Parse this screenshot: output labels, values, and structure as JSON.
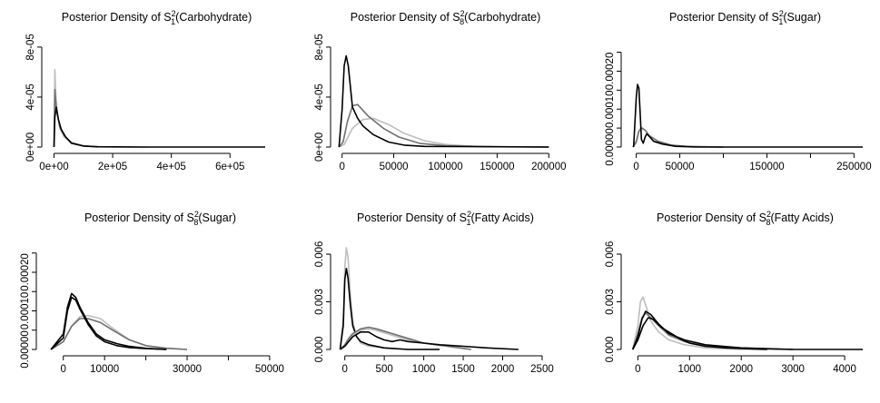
{
  "chart_data": [
    {
      "type": "line",
      "title": {
        "prefix": "Posterior Density of S",
        "sub": "1",
        "sup": "2",
        "suffix": "(Carbohydrate)"
      },
      "xlim": [
        -20000,
        720000
      ],
      "ylim": [
        0,
        8.5e-05
      ],
      "x_ticks": [
        0,
        200000,
        400000,
        600000
      ],
      "x_tick_labels": [
        "0e+00",
        "2e+05",
        "4e+05",
        "6e+05"
      ],
      "y_ticks": [
        0,
        4e-05,
        8e-05
      ],
      "y_tick_labels": [
        "0e+00",
        "4e-05",
        "8e-05"
      ],
      "series": [
        {
          "color": "#bdbdbd",
          "x": [
            0,
            3000,
            6000,
            10000,
            20000,
            35000,
            60000,
            100000,
            150000,
            320000
          ],
          "y": [
            0,
            6.2e-05,
            4.2e-05,
            3e-05,
            1.5e-05,
            8e-06,
            3e-06,
            8e-07,
            2e-07,
            0
          ]
        },
        {
          "color": "#707070",
          "x": [
            0,
            3000,
            6000,
            10000,
            20000,
            35000,
            60000,
            100000,
            150000
          ],
          "y": [
            0,
            4.6e-05,
            3.6e-05,
            2.8e-05,
            1.6e-05,
            9e-06,
            3.5e-06,
            1e-06,
            0
          ]
        },
        {
          "color": "#000000",
          "x": [
            0,
            3000,
            8000,
            15000,
            25000,
            40000,
            60000,
            100000,
            150000,
            300000,
            720000
          ],
          "y": [
            0,
            2.4e-05,
            3.2e-05,
            2.2e-05,
            1.4e-05,
            8e-06,
            3e-06,
            8e-07,
            2e-07,
            0,
            0
          ]
        }
      ]
    },
    {
      "type": "line",
      "title": {
        "prefix": "Posterior Density of S",
        "sub": "8",
        "sup": "2",
        "suffix": "(Carbohydrate)"
      },
      "xlim": [
        -5000,
        205000
      ],
      "ylim": [
        0,
        8.5e-05
      ],
      "x_ticks": [
        0,
        50000,
        100000,
        150000,
        200000
      ],
      "x_tick_labels": [
        "0",
        "50000",
        "100000",
        "150000",
        "200000"
      ],
      "y_ticks": [
        0,
        4e-05,
        8e-05
      ],
      "y_tick_labels": [
        "0e+00",
        "4e-05",
        "8e-05"
      ],
      "series": [
        {
          "color": "#bdbdbd",
          "x": [
            -3000,
            2000,
            10000,
            20000,
            30000,
            45000,
            60000,
            80000,
            100000,
            130000,
            200000
          ],
          "y": [
            0,
            2e-06,
            1.5e-05,
            2.2e-05,
            2.3e-05,
            1.8e-05,
            1.1e-05,
            5e-06,
            2e-06,
            5e-07,
            0
          ]
        },
        {
          "color": "#707070",
          "x": [
            -3000,
            1000,
            5000,
            10000,
            15000,
            25000,
            40000,
            55000,
            75000,
            100000,
            150000,
            200000
          ],
          "y": [
            0,
            4e-06,
            2e-05,
            3.3e-05,
            3.4e-05,
            2.5e-05,
            1.5e-05,
            8e-06,
            3e-06,
            1e-06,
            2e-07,
            0
          ]
        },
        {
          "color": "#000000",
          "x": [
            -3000,
            0,
            2000,
            4000,
            6000,
            10000,
            15000,
            20000,
            30000,
            45000,
            60000,
            80000,
            200000
          ],
          "y": [
            0,
            3e-05,
            6.5e-05,
            7.3e-05,
            6.5e-05,
            3.2e-05,
            2.3e-05,
            1.7e-05,
            1e-05,
            4e-06,
            1.5e-06,
            5e-07,
            0
          ]
        }
      ]
    },
    {
      "type": "line",
      "title": {
        "prefix": "Posterior Density of S",
        "sub": "1",
        "sup": "2",
        "suffix": "(Sugar)"
      },
      "xlim": [
        -10000,
        260000
      ],
      "ylim": [
        0,
        0.00028
      ],
      "x_ticks": [
        0,
        50000,
        100000,
        150000,
        200000,
        250000
      ],
      "x_tick_labels": [
        "0",
        "50000",
        "",
        "150000",
        "",
        "250000"
      ],
      "y_ticks": [
        0,
        5e-05,
        0.0001,
        0.00015,
        0.0002,
        0.00025
      ],
      "y_tick_labels": [
        "0.00000",
        "",
        "0.00010",
        "",
        "0.00020",
        ""
      ],
      "series": [
        {
          "color": "#bdbdbd",
          "x": [
            -4000,
            0,
            3000,
            6000,
            10000,
            15000,
            25000,
            40000,
            60000,
            100000
          ],
          "y": [
            0,
            1e-05,
            4e-05,
            5.2e-05,
            4.5e-05,
            3e-05,
            1.5e-05,
            5e-06,
            1.5e-06,
            0
          ]
        },
        {
          "color": "#707070",
          "x": [
            -4000,
            0,
            3000,
            6000,
            10000,
            15000,
            25000,
            40000,
            60000,
            100000
          ],
          "y": [
            0,
            1.5e-05,
            4.2e-05,
            5e-05,
            4.5e-05,
            3e-05,
            1.5e-05,
            5e-06,
            1.5e-06,
            0
          ]
        },
        {
          "color": "#000000",
          "x": [
            -3000,
            0,
            1500,
            3000,
            4500,
            6000,
            8000,
            10000,
            12000,
            15000,
            20000,
            30000,
            45000,
            70000,
            260000
          ],
          "y": [
            0,
            0.00013,
            0.000165,
            0.000155,
            9e-05,
            2e-05,
            1e-05,
            2.5e-05,
            3.5e-05,
            2.8e-05,
            1.5e-05,
            8e-06,
            2e-06,
            0,
            0
          ]
        }
      ]
    },
    {
      "type": "line",
      "title": {
        "prefix": "Posterior Density of S",
        "sub": "8",
        "sup": "2",
        "suffix": "(Sugar)"
      },
      "xlim": [
        -5000,
        52000
      ],
      "ylim": [
        0,
        0.00028
      ],
      "x_ticks": [
        0,
        10000,
        20000,
        30000,
        40000,
        50000
      ],
      "x_tick_labels": [
        "0",
        "10000",
        "",
        "30000",
        "",
        "50000"
      ],
      "y_ticks": [
        0,
        5e-05,
        0.0001,
        0.00015,
        0.0002,
        0.00025
      ],
      "y_tick_labels": [
        "0.00000",
        "",
        "0.00010",
        "",
        "0.00020",
        ""
      ],
      "series": [
        {
          "color": "#bdbdbd",
          "x": [
            -3000,
            0,
            2000,
            4000,
            6000,
            9000,
            12000,
            16000,
            20000,
            25000,
            30000
          ],
          "y": [
            0,
            2e-05,
            6e-05,
            8.5e-05,
            8.8e-05,
            8e-05,
            5.5e-05,
            2.5e-05,
            1e-05,
            3e-06,
            0
          ]
        },
        {
          "color": "#707070",
          "x": [
            -3000,
            0,
            2000,
            4000,
            6000,
            9000,
            12000,
            16000,
            20000,
            25000,
            30000
          ],
          "y": [
            0,
            2e-05,
            6e-05,
            8e-05,
            8e-05,
            7e-05,
            5e-05,
            2.5e-05,
            1e-05,
            3e-06,
            0
          ]
        },
        {
          "color": "#000000",
          "x": [
            -3000,
            0,
            1000,
            2000,
            3000,
            4000,
            6000,
            8000,
            10000,
            13000,
            16000,
            20000,
            25000
          ],
          "y": [
            0,
            4e-05,
            0.00011,
            0.000145,
            0.000135,
            0.00011,
            7e-05,
            4e-05,
            2.5e-05,
            1.5e-05,
            8e-06,
            3e-06,
            0
          ]
        },
        {
          "color": "#000000",
          "x": [
            -3000,
            0,
            1000,
            2000,
            3000,
            4000,
            6000,
            8000,
            10000,
            13000,
            16000,
            20000,
            25000
          ],
          "y": [
            0,
            3e-05,
            0.0001,
            0.000135,
            0.000128,
            0.000105,
            6.5e-05,
            3.5e-05,
            2e-05,
            1e-05,
            5e-06,
            2e-06,
            0
          ]
        }
      ]
    },
    {
      "type": "line",
      "title": {
        "prefix": "Posterior Density of S",
        "sub": "1",
        "sup": "2",
        "suffix": "(Fatty Acids)"
      },
      "xlim": [
        -100,
        2650
      ],
      "ylim": [
        0,
        0.0068
      ],
      "x_ticks": [
        0,
        500,
        1000,
        1500,
        2000,
        2500
      ],
      "x_tick_labels": [
        "0",
        "500",
        "1000",
        "1500",
        "2000",
        "2500"
      ],
      "y_ticks": [
        0,
        0.003,
        0.006
      ],
      "y_tick_labels": [
        "0.000",
        "0.003",
        "0.006"
      ],
      "series": [
        {
          "color": "#bdbdbd",
          "x": [
            -60,
            -20,
            0,
            20,
            40,
            70,
            100,
            150,
            200,
            300,
            500,
            800,
            1200
          ],
          "y": [
            0,
            0.002,
            0.0052,
            0.0064,
            0.0058,
            0.0035,
            0.0018,
            0.0008,
            0.0004,
            0.0002,
            0.0001,
            0,
            0
          ]
        },
        {
          "color": "#000000",
          "x": [
            -60,
            -20,
            0,
            20,
            40,
            70,
            100,
            150,
            200,
            300,
            500,
            800,
            1200
          ],
          "y": [
            0,
            0.0015,
            0.0044,
            0.0051,
            0.0045,
            0.0028,
            0.0015,
            0.0008,
            0.0005,
            0.0003,
            0.0001,
            0,
            0
          ]
        },
        {
          "color": "#bdbdbd",
          "x": [
            -60,
            0,
            50,
            100,
            200,
            300,
            400,
            600,
            800,
            1000,
            1300,
            1600
          ],
          "y": [
            0,
            0.0003,
            0.0006,
            0.0009,
            0.0012,
            0.0013,
            0.0012,
            0.0009,
            0.0006,
            0.0004,
            0.0002,
            0
          ]
        },
        {
          "color": "#707070",
          "x": [
            -60,
            0,
            50,
            100,
            200,
            300,
            400,
            600,
            800,
            1000,
            1300,
            1600
          ],
          "y": [
            0,
            0.0003,
            0.0007,
            0.001,
            0.0013,
            0.0014,
            0.0013,
            0.001,
            0.0007,
            0.0004,
            0.0002,
            0
          ]
        },
        {
          "color": "#000000",
          "x": [
            -60,
            0,
            50,
            100,
            200,
            300,
            400,
            500,
            600,
            700,
            800,
            1000,
            1200,
            1500,
            1800,
            2200
          ],
          "y": [
            0,
            0.0002,
            0.0005,
            0.0008,
            0.0011,
            0.0011,
            0.0008,
            0.0006,
            0.0005,
            0.0006,
            0.0005,
            0.0004,
            0.0003,
            0.0002,
            0.0001,
            0
          ]
        }
      ]
    },
    {
      "type": "line",
      "title": {
        "prefix": "Posterior Density of S",
        "sub": "8",
        "sup": "2",
        "suffix": "(Fatty Acids)"
      },
      "xlim": [
        -200,
        4350
      ],
      "ylim": [
        0,
        0.0068
      ],
      "x_ticks": [
        0,
        1000,
        2000,
        3000,
        4000
      ],
      "x_tick_labels": [
        "0",
        "1000",
        "2000",
        "3000",
        "4000"
      ],
      "y_ticks": [
        0,
        0.003,
        0.006
      ],
      "y_tick_labels": [
        "0.000",
        "0.003",
        "0.006"
      ],
      "series": [
        {
          "color": "#bdbdbd",
          "x": [
            -100,
            0,
            50,
            100,
            150,
            250,
            400,
            600,
            900,
            1300,
            2000,
            3000
          ],
          "y": [
            0,
            0.0015,
            0.003,
            0.0033,
            0.0028,
            0.0018,
            0.0011,
            0.0006,
            0.0003,
            0.0001,
            0,
            0
          ]
        },
        {
          "color": "#707070",
          "x": [
            -100,
            0,
            80,
            150,
            250,
            400,
            600,
            900,
            1300,
            2000,
            3000
          ],
          "y": [
            0,
            0.001,
            0.002,
            0.0023,
            0.002,
            0.0015,
            0.0009,
            0.0005,
            0.0002,
            0.0001,
            0
          ]
        },
        {
          "color": "#000000",
          "x": [
            -100,
            0,
            80,
            150,
            250,
            400,
            600,
            900,
            1300,
            2000,
            3000,
            4350
          ],
          "y": [
            0,
            0.0008,
            0.0019,
            0.0024,
            0.0022,
            0.0016,
            0.001,
            0.0006,
            0.0003,
            0.0001,
            0,
            0
          ]
        },
        {
          "color": "#000000",
          "x": [
            -100,
            0,
            100,
            200,
            300,
            450,
            600,
            800,
            1000,
            1300,
            1700,
            2500
          ],
          "y": [
            0,
            0.0006,
            0.0015,
            0.002,
            0.0019,
            0.0014,
            0.0011,
            0.0007,
            0.0004,
            0.0002,
            0.0001,
            0
          ]
        }
      ]
    }
  ]
}
